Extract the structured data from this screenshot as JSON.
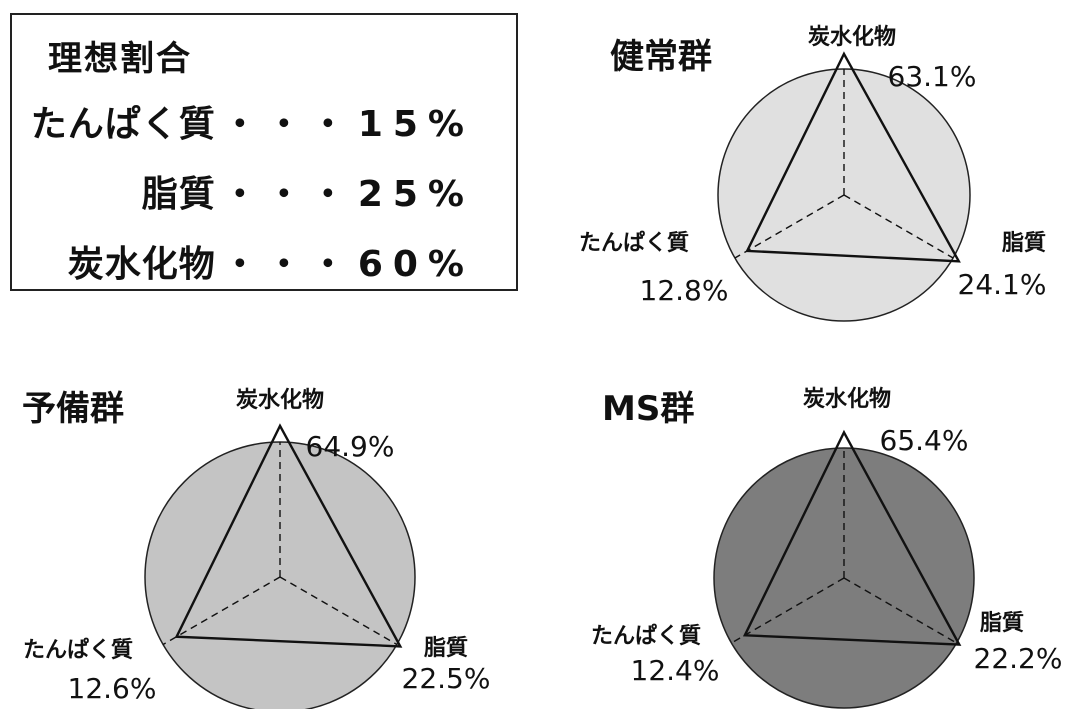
{
  "ideal": {
    "title": "理想割合",
    "rows": [
      {
        "label": "たんぱく質",
        "dots": "・・・",
        "value": "15%"
      },
      {
        "label": "脂質",
        "dots": "・・・",
        "value": "25%"
      },
      {
        "label": "炭水化物",
        "dots": "・・・",
        "value": "60%"
      }
    ]
  },
  "colors": {
    "healthy_fill": "#e0e0e0",
    "reserve_fill": "#c4c4c4",
    "ms_fill": "#7d7d7d",
    "outline": "#111111"
  },
  "chart_data": [
    {
      "type": "radar",
      "title": "健常群",
      "axes": [
        "炭水化物",
        "脂質",
        "たんぱく質"
      ],
      "values": [
        63.1,
        24.1,
        12.8
      ],
      "labels": [
        "63.1%",
        "24.1%",
        "12.8%"
      ]
    },
    {
      "type": "radar",
      "title": "予備群",
      "axes": [
        "炭水化物",
        "脂質",
        "たんぱく質"
      ],
      "values": [
        64.9,
        22.5,
        12.6
      ],
      "labels": [
        "64.9%",
        "22.5%",
        "12.6%"
      ]
    },
    {
      "type": "radar",
      "title": "MS群",
      "axes": [
        "炭水化物",
        "脂質",
        "たんぱく質"
      ],
      "values": [
        65.4,
        22.2,
        12.4
      ],
      "labels": [
        "65.4%",
        "22.2%",
        "12.4%"
      ]
    }
  ]
}
